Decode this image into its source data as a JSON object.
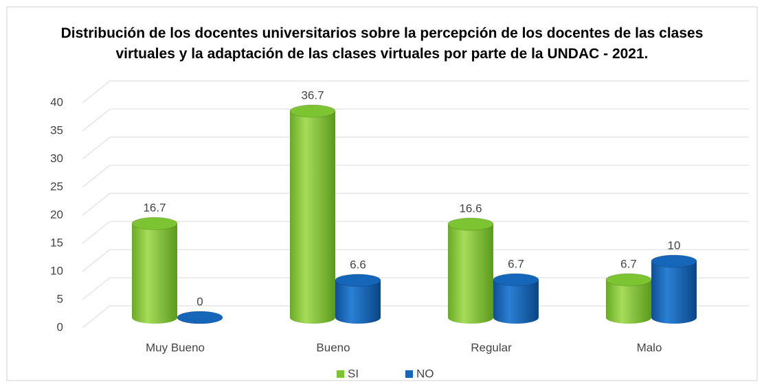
{
  "chart_data": {
    "type": "bar",
    "title": "Distribución de los docentes universitarios sobre la percepción de los docentes de las clases virtuales y la adaptación de las clases virtuales por parte de la UNDAC - 2021.",
    "categories": [
      "Muy Bueno",
      "Bueno",
      "Regular",
      "Malo"
    ],
    "series": [
      {
        "name": "SI",
        "color": "#7cc431",
        "values": [
          16.7,
          36.7,
          16.6,
          6.7
        ]
      },
      {
        "name": "NO",
        "color": "#1565b8",
        "values": [
          0,
          6.6,
          6.7,
          10
        ]
      }
    ],
    "ylim": [
      0,
      40
    ],
    "yticks": [
      0,
      5,
      10,
      15,
      20,
      25,
      30,
      35,
      40
    ],
    "grid": true,
    "legend": "bottom"
  }
}
